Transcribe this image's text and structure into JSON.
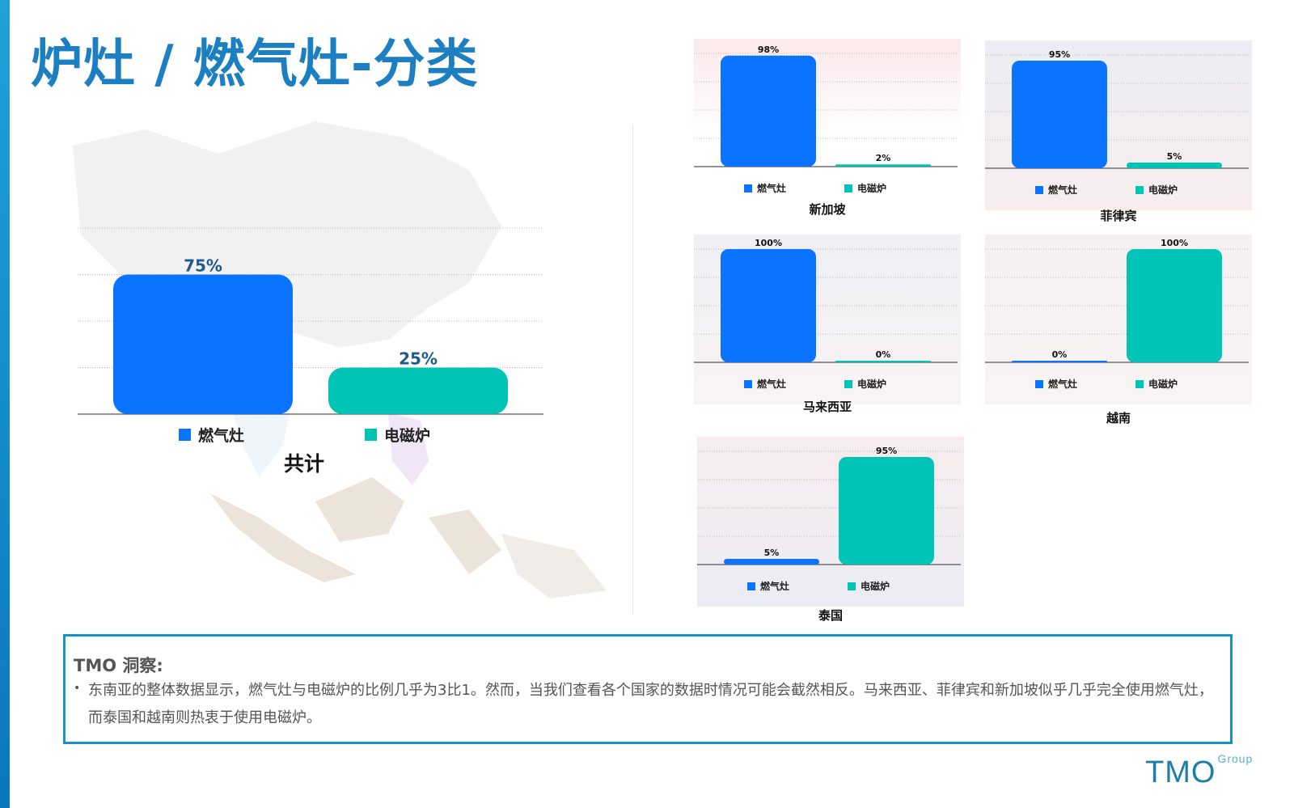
{
  "page": {
    "title": "炉灶 / 燃气灶-分类",
    "logo_text": "TMO",
    "logo_sup": "Group",
    "colors": {
      "accent": "#1c7fc1",
      "gas": "#0a73ff",
      "induction": "#00c5b6",
      "border": "#1c92c4"
    }
  },
  "insight": {
    "title": "TMO 洞察:",
    "bullet": "•",
    "text": "东南亚的整体数据显示，燃气灶与电磁炉的比例几乎为3比1。然而，当我们查看各个国家的数据时情况可能会截然相反。马来西亚、菲律宾和新加坡似乎几乎完全使用燃气灶，而泰国和越南则热衷于使用电磁炉。"
  },
  "chart_data": [
    {
      "type": "bar",
      "title": "共计",
      "categories": [
        "燃气灶",
        "电磁炉"
      ],
      "values": [
        75,
        25
      ],
      "value_labels": [
        "75%",
        "25%"
      ],
      "ylim": [
        0,
        100
      ],
      "grid": true,
      "legend": "bottom"
    },
    {
      "type": "bar",
      "title": "新加坡",
      "categories": [
        "燃气灶",
        "电磁炉"
      ],
      "values": [
        98,
        2
      ],
      "value_labels": [
        "98%",
        "2%"
      ],
      "ylim": [
        0,
        100
      ],
      "grid": true,
      "legend": "bottom"
    },
    {
      "type": "bar",
      "title": "菲律宾",
      "categories": [
        "燃气灶",
        "电磁炉"
      ],
      "values": [
        95,
        5
      ],
      "value_labels": [
        "95%",
        "5%"
      ],
      "ylim": [
        0,
        100
      ],
      "grid": true,
      "legend": "bottom"
    },
    {
      "type": "bar",
      "title": "马来西亚",
      "categories": [
        "燃气灶",
        "电磁炉"
      ],
      "values": [
        100,
        0
      ],
      "value_labels": [
        "100%",
        "0%"
      ],
      "ylim": [
        0,
        100
      ],
      "grid": true,
      "legend": "bottom"
    },
    {
      "type": "bar",
      "title": "越南",
      "categories": [
        "燃气灶",
        "电磁炉"
      ],
      "values": [
        0,
        100
      ],
      "value_labels": [
        "0%",
        "100%"
      ],
      "ylim": [
        0,
        100
      ],
      "grid": true,
      "legend": "bottom"
    },
    {
      "type": "bar",
      "title": "泰国",
      "categories": [
        "燃气灶",
        "电磁炉"
      ],
      "values": [
        5,
        95
      ],
      "value_labels": [
        "5%",
        "95%"
      ],
      "ylim": [
        0,
        100
      ],
      "grid": true,
      "legend": "bottom"
    }
  ]
}
